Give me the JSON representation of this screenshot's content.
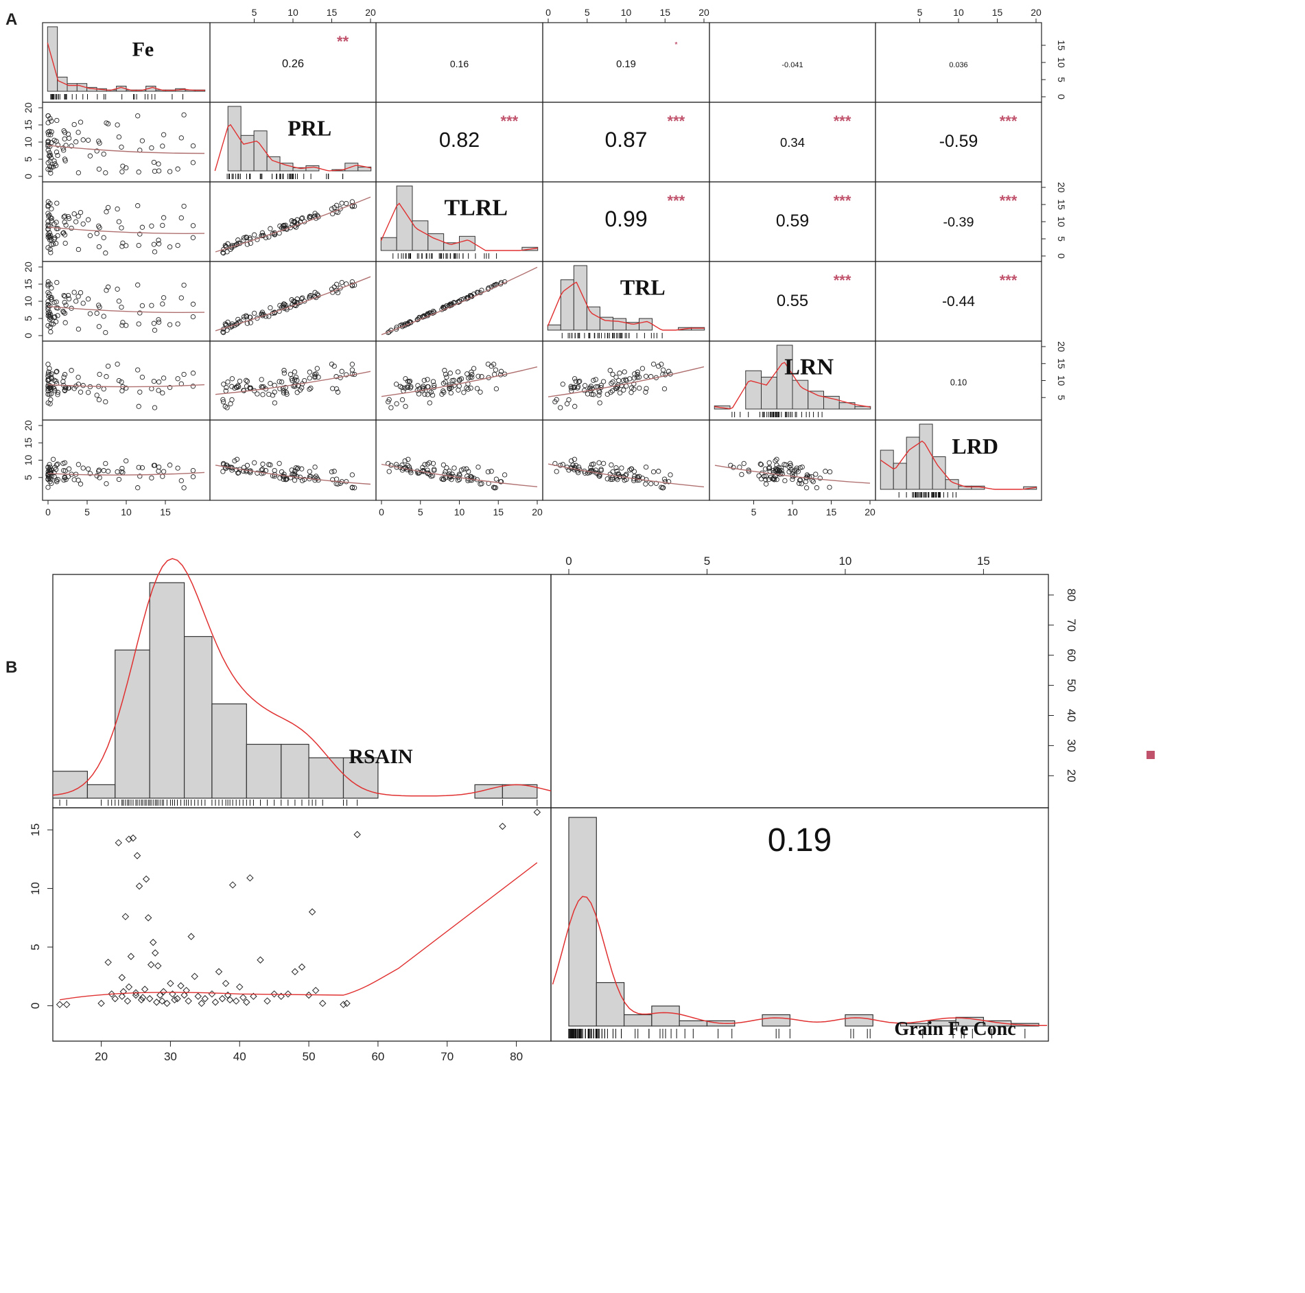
{
  "figure": {
    "panel_a_label": "A",
    "panel_b_label": "B",
    "colors": {
      "bar_fill": "#d3d3d3",
      "bar_stroke": "#333333",
      "density_line": "#e03030",
      "smooth_line": "#b07070",
      "star_color": "#c0526c",
      "point_stroke": "#222222"
    }
  },
  "chart_data": [
    {
      "type": "scatter",
      "id": "A",
      "title": "",
      "variables": [
        "Fe",
        "PRL",
        "TLRL",
        "TRL",
        "LRN",
        "LRD"
      ],
      "tick_labels": {
        "top": [
          [
            "5",
            "10",
            "15",
            "20"
          ],
          [
            "0",
            "5",
            "10",
            "15",
            "20"
          ],
          [
            "5",
            "10",
            "15",
            "20"
          ]
        ],
        "bottom": [
          [
            "0",
            "5",
            "10",
            "15"
          ],
          [
            "0",
            "5",
            "10",
            "15",
            "20"
          ],
          [
            "5",
            "10",
            "15",
            "20"
          ]
        ],
        "left": [
          [
            "20",
            "15",
            "10",
            "5",
            "0"
          ],
          [
            "20",
            "15",
            "10",
            "5",
            "0"
          ],
          [
            "20",
            "15",
            "10",
            "5"
          ]
        ],
        "right": [
          [
            "15",
            "10",
            "5",
            "0"
          ],
          [
            "20",
            "15",
            "10",
            "5",
            "0"
          ],
          [
            "20",
            "15",
            "10",
            "5"
          ]
        ]
      },
      "correlations": [
        {
          "pair": [
            "Fe",
            "PRL"
          ],
          "r": "0.26",
          "stars": "**"
        },
        {
          "pair": [
            "Fe",
            "TLRL"
          ],
          "r": "0.16",
          "stars": ""
        },
        {
          "pair": [
            "Fe",
            "TRL"
          ],
          "r": "0.19",
          "stars": "*"
        },
        {
          "pair": [
            "Fe",
            "LRN"
          ],
          "r": "-0.041",
          "stars": ""
        },
        {
          "pair": [
            "Fe",
            "LRD"
          ],
          "r": "0.036",
          "stars": ""
        },
        {
          "pair": [
            "PRL",
            "TLRL"
          ],
          "r": "0.82",
          "stars": "***"
        },
        {
          "pair": [
            "PRL",
            "TRL"
          ],
          "r": "0.87",
          "stars": "***"
        },
        {
          "pair": [
            "PRL",
            "LRN"
          ],
          "r": "0.34",
          "stars": "***"
        },
        {
          "pair": [
            "PRL",
            "LRD"
          ],
          "r": "-0.59",
          "stars": "***"
        },
        {
          "pair": [
            "TLRL",
            "TRL"
          ],
          "r": "0.99",
          "stars": "***"
        },
        {
          "pair": [
            "TLRL",
            "LRN"
          ],
          "r": "0.59",
          "stars": "***"
        },
        {
          "pair": [
            "TLRL",
            "LRD"
          ],
          "r": "-0.39",
          "stars": "***"
        },
        {
          "pair": [
            "TRL",
            "LRN"
          ],
          "r": "0.55",
          "stars": "***"
        },
        {
          "pair": [
            "TRL",
            "LRD"
          ],
          "r": "-0.44",
          "stars": "***"
        },
        {
          "pair": [
            "LRN",
            "LRD"
          ],
          "r": "0.10",
          "stars": ""
        }
      ]
    },
    {
      "type": "scatter",
      "id": "B",
      "title": "",
      "variables": [
        "RSAIN",
        "Grain Fe Conc"
      ],
      "correlation": {
        "r": "0.19",
        "stars": "*"
      },
      "x_range": [
        13,
        85
      ],
      "y_range": [
        -1.5,
        17
      ],
      "tick_labels": {
        "top": [
          "0",
          "5",
          "10",
          "15"
        ],
        "bottom": [
          "20",
          "30",
          "40",
          "50",
          "60",
          "70",
          "80"
        ],
        "left": [
          "0",
          "5",
          "10",
          "15"
        ],
        "right": [
          "20",
          "30",
          "40",
          "50",
          "60",
          "70",
          "80"
        ]
      },
      "rsain_histogram": {
        "bin_edges": [
          13,
          18,
          22,
          27,
          32,
          36,
          41,
          46,
          50,
          55,
          60,
          64,
          69,
          74,
          78,
          83
        ],
        "counts": [
          2,
          1,
          11,
          16,
          12,
          7,
          4,
          4,
          3,
          3,
          0,
          0,
          0,
          1,
          1
        ]
      },
      "grain_fe_histogram": {
        "bin_edges": [
          0,
          1,
          2,
          3,
          4,
          5,
          6,
          7,
          8,
          9,
          10,
          11,
          12,
          13,
          14,
          15,
          16,
          17
        ],
        "counts": [
          24,
          5,
          1.3,
          2.3,
          0.6,
          0.6,
          0,
          1.3,
          0,
          0,
          1.3,
          0,
          0.3,
          0.6,
          1,
          0.6,
          0.3
        ]
      },
      "scatter": {
        "x": [
          14,
          15,
          20,
          21,
          21.5,
          22,
          22.5,
          23,
          23,
          23.2,
          23.5,
          23.8,
          24,
          24,
          24.3,
          24.6,
          25,
          25,
          25.2,
          25.5,
          25.8,
          26,
          26.3,
          26.5,
          26.8,
          27,
          27.2,
          27.5,
          27.8,
          28,
          28.2,
          28.5,
          28.8,
          29,
          29.5,
          30,
          30.3,
          30.6,
          31,
          31.5,
          32,
          32.3,
          32.6,
          33,
          33.5,
          34,
          34.5,
          35,
          36,
          36.5,
          37,
          37.5,
          38,
          38.3,
          38.6,
          39,
          39.5,
          40,
          40.5,
          41,
          41.5,
          42,
          43,
          44,
          45,
          46,
          47,
          48,
          49,
          50,
          50.5,
          51,
          52,
          55,
          55.5,
          57,
          78,
          83
        ],
        "y": [
          0.1,
          0.1,
          0.2,
          3.7,
          1.0,
          0.6,
          13.9,
          0.8,
          2.4,
          1.2,
          7.6,
          0.4,
          14.2,
          1.6,
          4.2,
          14.3,
          0.9,
          1.1,
          12.8,
          10.2,
          0.5,
          0.7,
          1.4,
          10.8,
          7.5,
          0.6,
          3.5,
          5.4,
          4.5,
          0.3,
          3.4,
          0.9,
          0.4,
          1.2,
          0.2,
          1.9,
          1.0,
          0.5,
          0.6,
          1.7,
          0.9,
          1.3,
          0.4,
          5.9,
          2.5,
          0.8,
          0.2,
          0.6,
          1.0,
          0.3,
          2.9,
          0.6,
          1.9,
          0.9,
          0.5,
          10.3,
          0.4,
          1.6,
          0.7,
          0.3,
          10.9,
          0.8,
          3.9,
          0.4,
          1.0,
          0.8,
          1.0,
          2.9,
          3.3,
          0.9,
          8.0,
          1.3,
          0.2,
          0.1,
          0.2,
          14.6,
          15.3,
          16.5
        ]
      }
    }
  ]
}
